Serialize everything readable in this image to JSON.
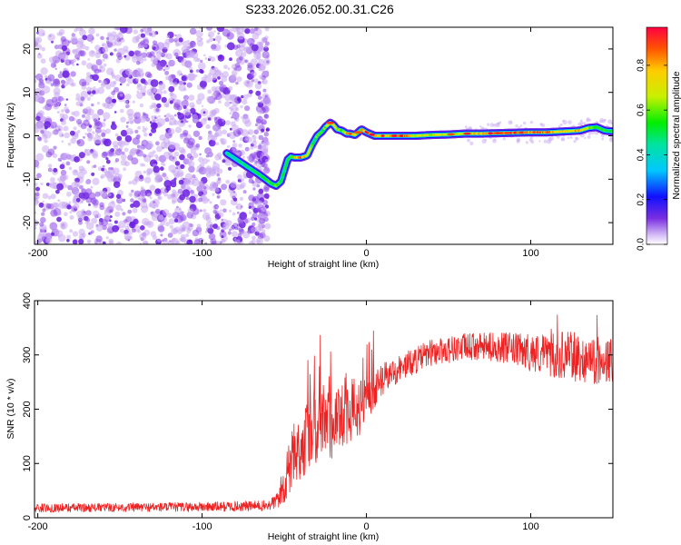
{
  "title": "S233.2026.052.00.31.C26",
  "chart_data": [
    {
      "type": "heatmap",
      "xlabel": "Height of straight line (km)",
      "ylabel": "Frequency (Hz)",
      "xlim": [
        -202,
        150
      ],
      "ylim": [
        -25,
        25
      ],
      "xticks": [
        -200,
        -100,
        0,
        100
      ],
      "yticks": [
        -20,
        -10,
        0,
        10,
        20
      ],
      "noise_region_x": [
        -202,
        -60
      ],
      "track": {
        "x": [
          -85,
          -75,
          -65,
          -58,
          -55,
          -52,
          -50,
          -48,
          -46,
          -44,
          -42,
          -40,
          -38,
          -36,
          -33,
          -30,
          -27,
          -25,
          -22,
          -20,
          -18,
          -15,
          -12,
          -10,
          -7,
          -5,
          -3,
          0,
          5,
          10,
          20,
          30,
          40,
          50,
          60,
          70,
          80,
          90,
          100,
          110,
          120,
          130,
          135,
          140,
          145,
          150
        ],
        "y": [
          -4,
          -6.5,
          -9,
          -11,
          -11.5,
          -10.5,
          -8,
          -5.5,
          -4.8,
          -5,
          -5,
          -5,
          -4.8,
          -4.5,
          -2,
          0,
          1,
          2,
          3,
          2.5,
          1.5,
          1.2,
          0.5,
          0.5,
          0.2,
          0.8,
          1.5,
          0.8,
          0,
          0,
          0,
          0,
          0.2,
          0.3,
          0.5,
          0.5,
          0.6,
          0.7,
          0.8,
          0.8,
          1,
          1.2,
          1.8,
          2,
          1.2,
          1
        ]
      },
      "track_amplitude": {
        "x": [
          -85,
          -65,
          -55,
          -48,
          -40,
          -33,
          -25,
          -20,
          -15,
          -10,
          -5,
          0,
          10,
          20,
          30,
          50,
          70,
          80,
          90,
          100,
          110,
          120,
          130,
          140,
          150
        ],
        "amp": [
          0.45,
          0.5,
          0.6,
          0.5,
          0.9,
          0.55,
          0.6,
          0.8,
          0.6,
          0.85,
          0.6,
          0.95,
          0.7,
          0.95,
          0.7,
          0.65,
          0.8,
          0.9,
          0.95,
          0.85,
          0.9,
          0.75,
          0.8,
          0.55,
          0.5
        ]
      },
      "colorbar": {
        "label": "Normalized spectral amplitude",
        "range": [
          0,
          0.97
        ],
        "ticks": [
          "0.0",
          "0.2",
          "0.4",
          "0.6",
          "0.8"
        ]
      }
    },
    {
      "type": "line",
      "xlabel": "Height of straight line (km)",
      "ylabel": "SNR (10 * v/v)",
      "xlim": [
        -202,
        150
      ],
      "ylim": [
        0,
        400
      ],
      "xticks": [
        -200,
        -100,
        0,
        100
      ],
      "yticks": [
        0,
        100,
        200,
        300,
        400
      ],
      "color": "#ee2222",
      "series": [
        {
          "name": "SNR",
          "envelope_x": [
            -202,
            -150,
            -100,
            -60,
            -55,
            -50,
            -45,
            -40,
            -35,
            -30,
            -25,
            -20,
            -15,
            -10,
            -5,
            0,
            5,
            10,
            20,
            30,
            40,
            50,
            60,
            70,
            80,
            90,
            100,
            110,
            120,
            130,
            140,
            150
          ],
          "mean": [
            18,
            19,
            20,
            22,
            30,
            60,
            110,
            130,
            150,
            165,
            170,
            180,
            195,
            200,
            200,
            215,
            235,
            255,
            275,
            290,
            305,
            310,
            315,
            315,
            315,
            310,
            305,
            300,
            300,
            295,
            290,
            290
          ],
          "spread": [
            8,
            8,
            9,
            10,
            15,
            40,
            55,
            60,
            65,
            70,
            70,
            70,
            65,
            60,
            55,
            45,
            35,
            30,
            25,
            25,
            25,
            25,
            25,
            25,
            28,
            30,
            35,
            40,
            45,
            45,
            45,
            45
          ]
        }
      ]
    }
  ],
  "colors": {
    "noise": "#7a2ee0",
    "axis": "#000000",
    "snr_line": "#ee2222"
  }
}
